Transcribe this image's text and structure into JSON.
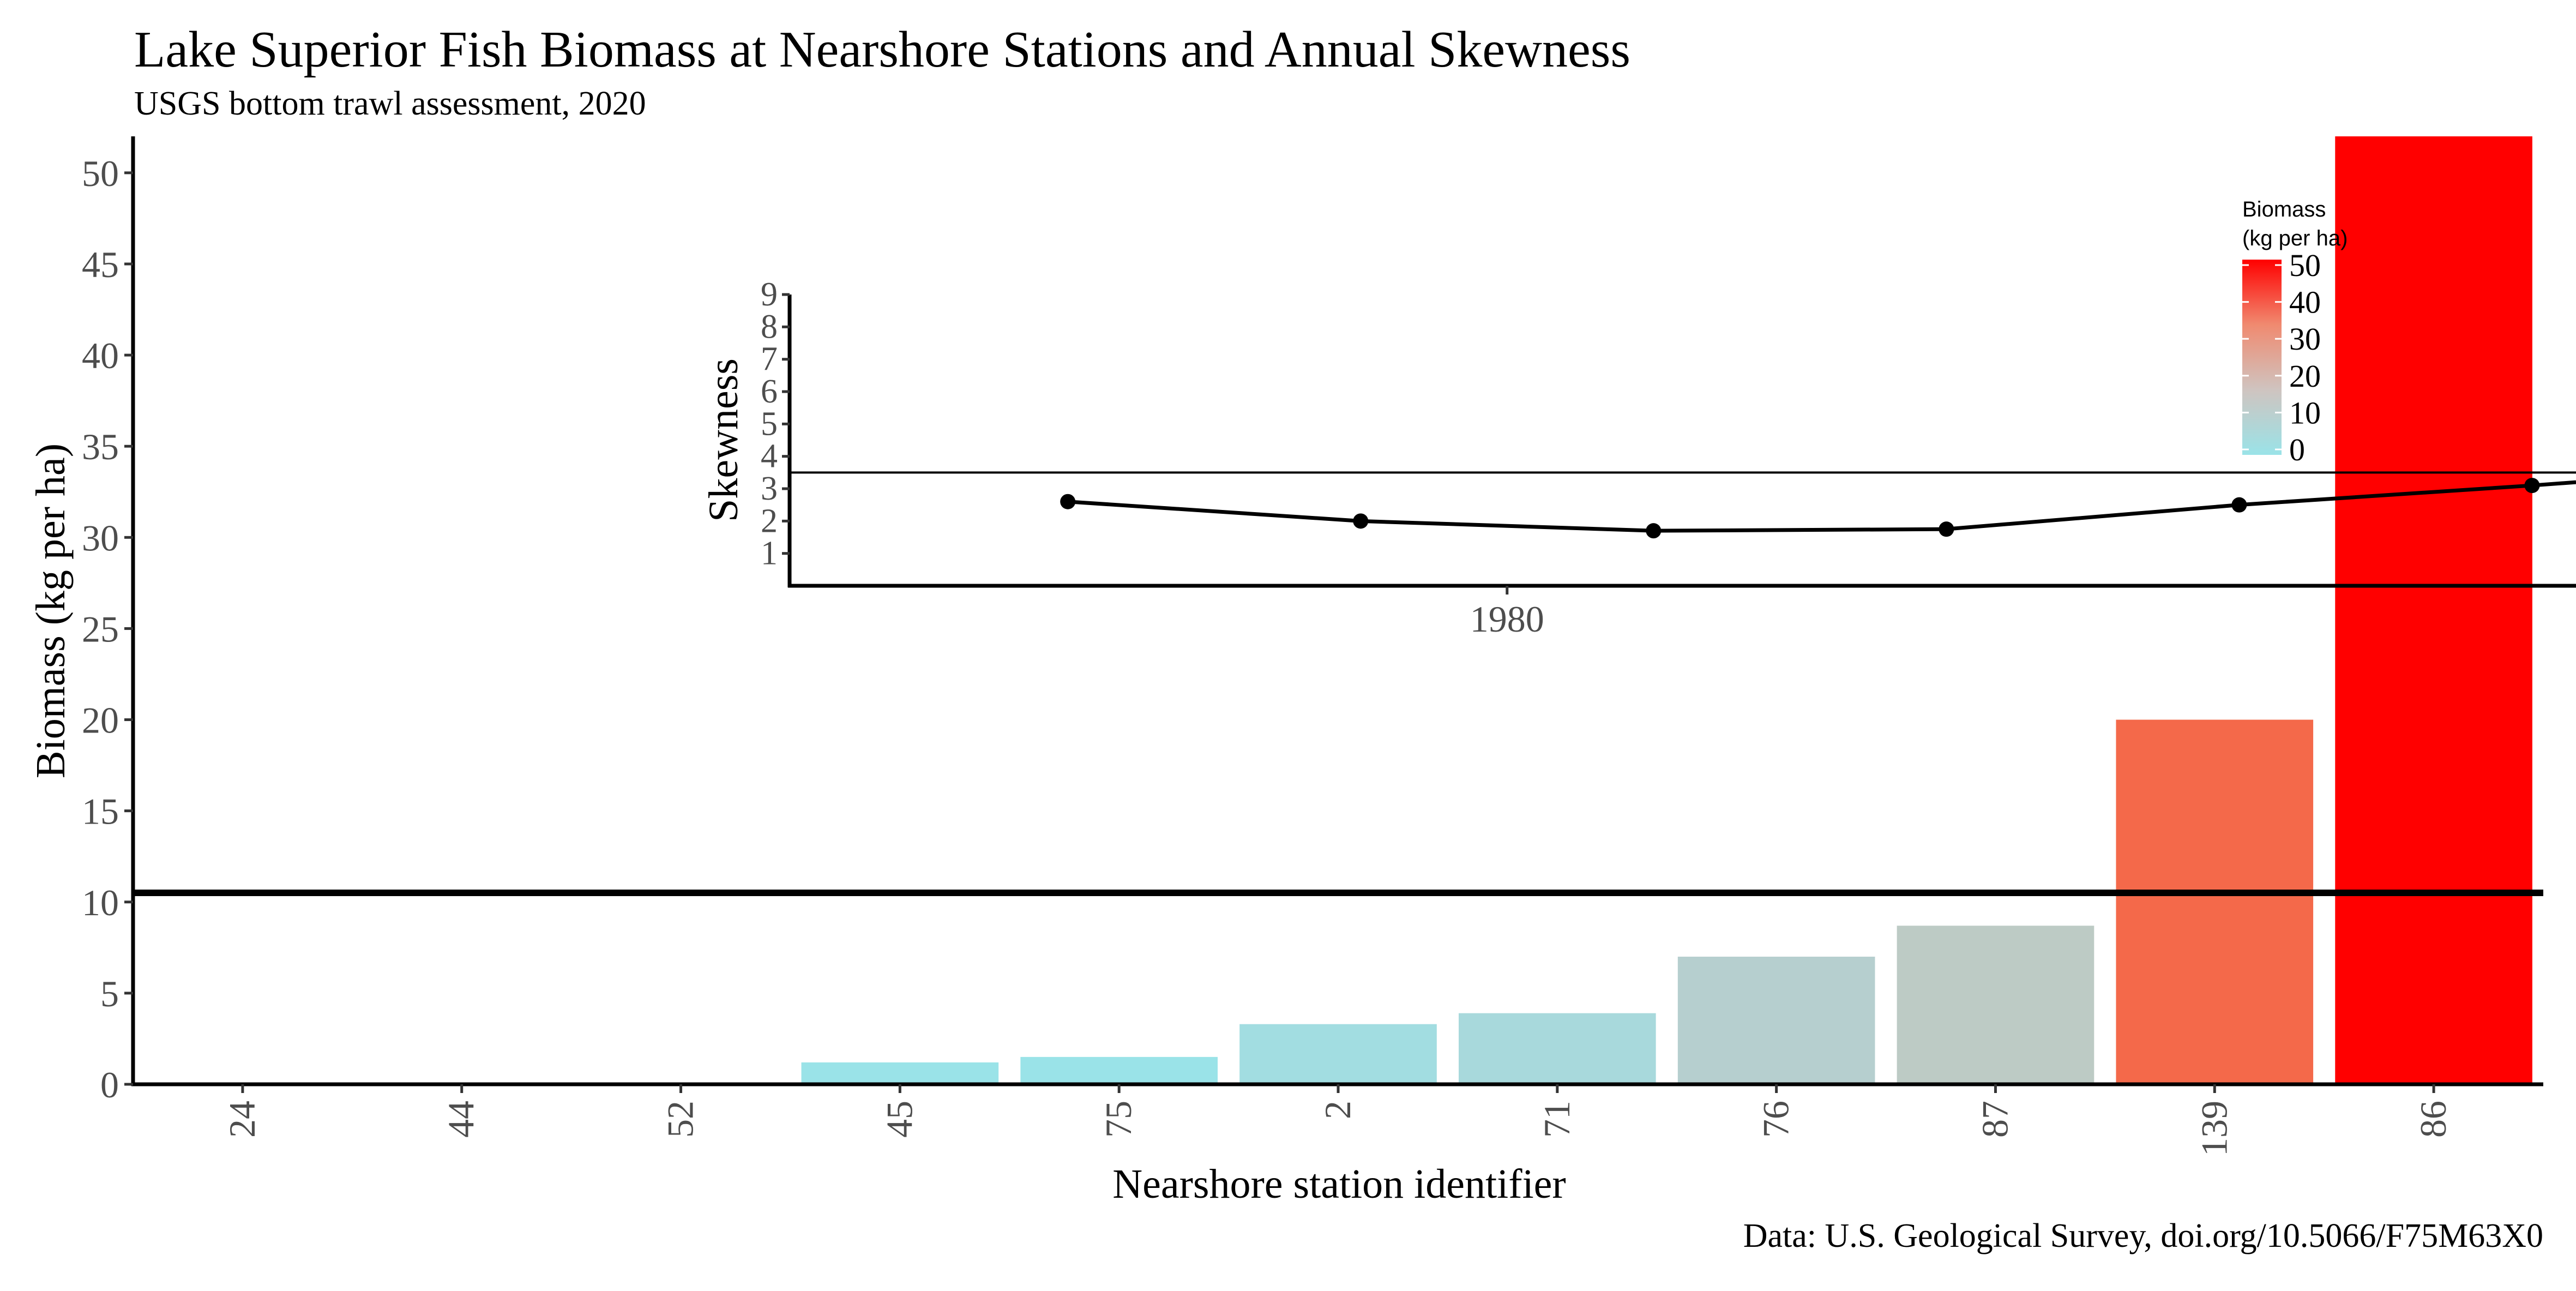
{
  "chart_data": {
    "main": {
      "type": "bar",
      "title": "Lake Superior Fish Biomass at Nearshore Stations and Annual Skewness",
      "subtitle": "USGS bottom trawl assessment,  2020",
      "caption": "Data: U.S. Geological Survey, doi.org/10.5066/F75M63X0",
      "xlabel": "Nearshore station identifier",
      "ylabel": "Biomass (kg per ha)",
      "categories": [
        "24",
        "44",
        "52",
        "45",
        "75",
        "2",
        "71",
        "76",
        "87",
        "139",
        "86"
      ],
      "values": [
        0,
        0,
        0,
        1.2,
        1.5,
        3.3,
        3.9,
        7.0,
        8.7,
        20.0,
        52.0
      ],
      "colors": [
        "#9ae3e8",
        "#9ae3e8",
        "#9ae3e8",
        "#9ae3e8",
        "#9ae3e8",
        "#a2dde1",
        "#a8d9dc",
        "#b6cfcf",
        "#bdcbc5",
        "#f4694a",
        "#ff0000"
      ],
      "ylim": [
        0,
        52
      ],
      "yticks": [
        0,
        5,
        10,
        15,
        20,
        25,
        30,
        35,
        40,
        45,
        50
      ],
      "reference_line": 10.5,
      "legend": {
        "title_line1": "Biomass",
        "title_line2": "(kg per ha)",
        "ticks": [
          0,
          10,
          20,
          30,
          40,
          50
        ],
        "gradient": [
          "#9ae3e8",
          "#cfc4c0",
          "#f08a70",
          "#ff0000"
        ],
        "placement": "inside-top-right"
      },
      "grid": false
    },
    "inset": {
      "type": "line",
      "ylabel": "Skewness",
      "x": [
        1977,
        1979,
        1981,
        1983,
        1985,
        1987,
        1987.3
      ],
      "y": [
        2.6,
        2.0,
        1.7,
        1.75,
        2.5,
        3.1,
        3.2
      ],
      "xlim": [
        1975.1,
        1987.3
      ],
      "xticks": [
        1980
      ],
      "ylim": [
        0,
        9
      ],
      "yticks": [
        1,
        2,
        3,
        4,
        5,
        6,
        7,
        8,
        9
      ],
      "reference_line": 3.5
    }
  }
}
